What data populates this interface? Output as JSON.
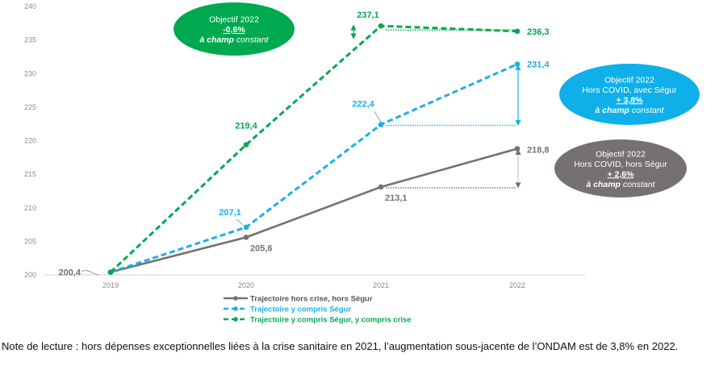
{
  "chart_data": {
    "type": "line",
    "title": "",
    "xlabel": "",
    "ylabel": "",
    "x": [
      "2019",
      "2020",
      "2021",
      "2022"
    ],
    "ylim": [
      200,
      240
    ],
    "yticks": [
      "200",
      "205",
      "210",
      "215",
      "220",
      "225",
      "230",
      "235",
      "240"
    ],
    "ytick_values": [
      200,
      205,
      210,
      215,
      220,
      225,
      230,
      235,
      240
    ],
    "grid": false,
    "legend_position": "bottom-center",
    "series": [
      {
        "name": "Trajectoire hors crise, hors Ségur",
        "color": "#767171",
        "style": "solid",
        "values": [
          200.4,
          205.6,
          213.1,
          218.8
        ],
        "labels": [
          "200,4",
          "205,6",
          "213,1",
          "218,8"
        ]
      },
      {
        "name": "Trajectoire y compris Ségur",
        "color": "#1ab0e8",
        "style": "dashed",
        "values": [
          200.4,
          207.1,
          222.4,
          231.4
        ],
        "labels": [
          "",
          "207,1",
          "222,4",
          "231,4"
        ]
      },
      {
        "name": "Trajectoire y compris Ségur, y compris crise",
        "color": "#00a94f",
        "style": "dashed",
        "values": [
          200.4,
          219.4,
          237.1,
          236.3
        ],
        "labels": [
          "",
          "219,4",
          "237,1",
          "236,3"
        ]
      }
    ],
    "annotations": [
      {
        "series": 2,
        "color": "#00a94f",
        "lines": [
          "Objectif 2022",
          "-0,6%",
          "à champ constant"
        ],
        "underline_line": 1,
        "italic_line": 2,
        "bold_word": "à champ"
      },
      {
        "series": 1,
        "color": "#0fb0ea",
        "lines": [
          "Objectif 2022",
          "Hors COVID, avec Ségur",
          "+ 3,8%",
          "à champ constant"
        ],
        "underline_line": 2,
        "italic_line": 3,
        "bold_word": "à champ"
      },
      {
        "series": 0,
        "color": "#767171",
        "lines": [
          "Objectif 2022",
          "Hors COVID, hors Ségur",
          "+ 2,6%",
          "à champ constant"
        ],
        "underline_line": 2,
        "italic_line": 3,
        "bold_word": "à champ"
      }
    ]
  },
  "note": "Note de lecture : hors dépenses exceptionnelles liées à la crise sanitaire en 2021, l’augmentation sous-jacente de l’ONDAM est de 3,8% en 2022."
}
